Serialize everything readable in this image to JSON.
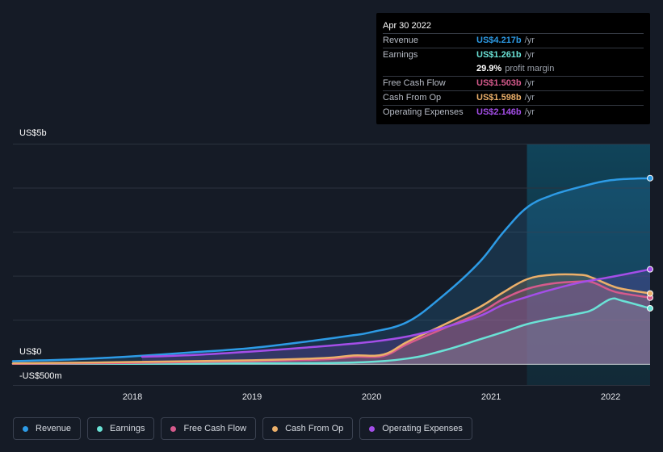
{
  "tooltip": {
    "date": "Apr 30 2022",
    "rows": [
      {
        "label": "Revenue",
        "value": "US$4.217b",
        "unit": "/yr",
        "color": "#2d9be6"
      },
      {
        "label": "Earnings",
        "value": "US$1.261b",
        "unit": "/yr",
        "color": "#6ae2d6"
      },
      {
        "label": "",
        "value": "29.9%",
        "unit": "profit margin",
        "color": "#ffffff"
      },
      {
        "label": "Free Cash Flow",
        "value": "US$1.503b",
        "unit": "/yr",
        "color": "#d65a8c"
      },
      {
        "label": "Cash From Op",
        "value": "US$1.598b",
        "unit": "/yr",
        "color": "#ecb06a"
      },
      {
        "label": "Operating Expenses",
        "value": "US$2.146b",
        "unit": "/yr",
        "color": "#a44ee8"
      }
    ]
  },
  "axis": {
    "y_top_label": "US$5b",
    "y_zero_label": "US$0",
    "y_bottom_label": "-US$500m"
  },
  "legend": [
    {
      "label": "Revenue",
      "color": "#2d9be6"
    },
    {
      "label": "Earnings",
      "color": "#6ae2d6"
    },
    {
      "label": "Free Cash Flow",
      "color": "#d65a8c"
    },
    {
      "label": "Cash From Op",
      "color": "#ecb06a"
    },
    {
      "label": "Operating Expenses",
      "color": "#a44ee8"
    }
  ],
  "chart_data": {
    "type": "area",
    "ylim": [
      -0.5,
      5.0
    ],
    "xlim": [
      2017.0,
      2022.33
    ],
    "y_unit": "US$ billions",
    "x_ticks": [
      "2018",
      "2019",
      "2020",
      "2021",
      "2022"
    ],
    "x_tick_values": [
      2018,
      2019,
      2020,
      2021,
      2022
    ],
    "highlight_start": 2021.3,
    "series": [
      {
        "name": "Revenue",
        "color": "#2d9be6",
        "x": [
          2017.0,
          2017.5,
          2018.0,
          2018.5,
          2019.0,
          2019.5,
          2019.85,
          2020.0,
          2020.3,
          2020.6,
          2020.9,
          2021.1,
          2021.3,
          2021.5,
          2021.75,
          2022.0,
          2022.33
        ],
        "y": [
          0.06,
          0.1,
          0.17,
          0.26,
          0.36,
          0.52,
          0.65,
          0.72,
          0.95,
          1.55,
          2.3,
          2.98,
          3.55,
          3.82,
          4.02,
          4.17,
          4.217
        ]
      },
      {
        "name": "Earnings",
        "color": "#6ae2d6",
        "x": [
          2017.0,
          2018.0,
          2019.0,
          2019.85,
          2020.3,
          2020.6,
          2020.9,
          2021.1,
          2021.3,
          2021.5,
          2021.75,
          2021.85,
          2022.0,
          2022.1,
          2022.33
        ],
        "y": [
          0.0,
          0.0,
          0.01,
          0.03,
          0.12,
          0.3,
          0.55,
          0.72,
          0.9,
          1.02,
          1.15,
          1.23,
          1.47,
          1.43,
          1.261
        ]
      },
      {
        "name": "Free Cash Flow",
        "color": "#d65a8c",
        "x": [
          2017.0,
          2018.0,
          2019.0,
          2019.6,
          2019.85,
          2020.1,
          2020.3,
          2020.6,
          2020.9,
          2021.1,
          2021.3,
          2021.5,
          2021.75,
          2021.85,
          2022.0,
          2022.1,
          2022.33
        ],
        "y": [
          0.0,
          0.02,
          0.06,
          0.1,
          0.16,
          0.18,
          0.45,
          0.8,
          1.15,
          1.47,
          1.7,
          1.82,
          1.87,
          1.85,
          1.67,
          1.6,
          1.503
        ]
      },
      {
        "name": "Cash From Op",
        "color": "#ecb06a",
        "x": [
          2017.0,
          2018.0,
          2019.0,
          2019.6,
          2019.85,
          2020.1,
          2020.3,
          2020.6,
          2020.9,
          2021.1,
          2021.3,
          2021.5,
          2021.75,
          2021.85,
          2022.0,
          2022.1,
          2022.33
        ],
        "y": [
          0.01,
          0.04,
          0.08,
          0.13,
          0.19,
          0.21,
          0.5,
          0.88,
          1.28,
          1.62,
          1.92,
          2.02,
          2.02,
          1.95,
          1.78,
          1.7,
          1.598
        ]
      },
      {
        "name": "Operating Expenses",
        "color": "#a44ee8",
        "x": [
          2018.08,
          2018.5,
          2019.0,
          2019.5,
          2020.0,
          2020.3,
          2020.6,
          2020.9,
          2021.1,
          2021.3,
          2021.5,
          2021.75,
          2022.0,
          2022.33
        ],
        "y": [
          0.16,
          0.2,
          0.28,
          0.38,
          0.5,
          0.62,
          0.82,
          1.08,
          1.34,
          1.52,
          1.68,
          1.85,
          1.97,
          2.146
        ]
      }
    ]
  }
}
